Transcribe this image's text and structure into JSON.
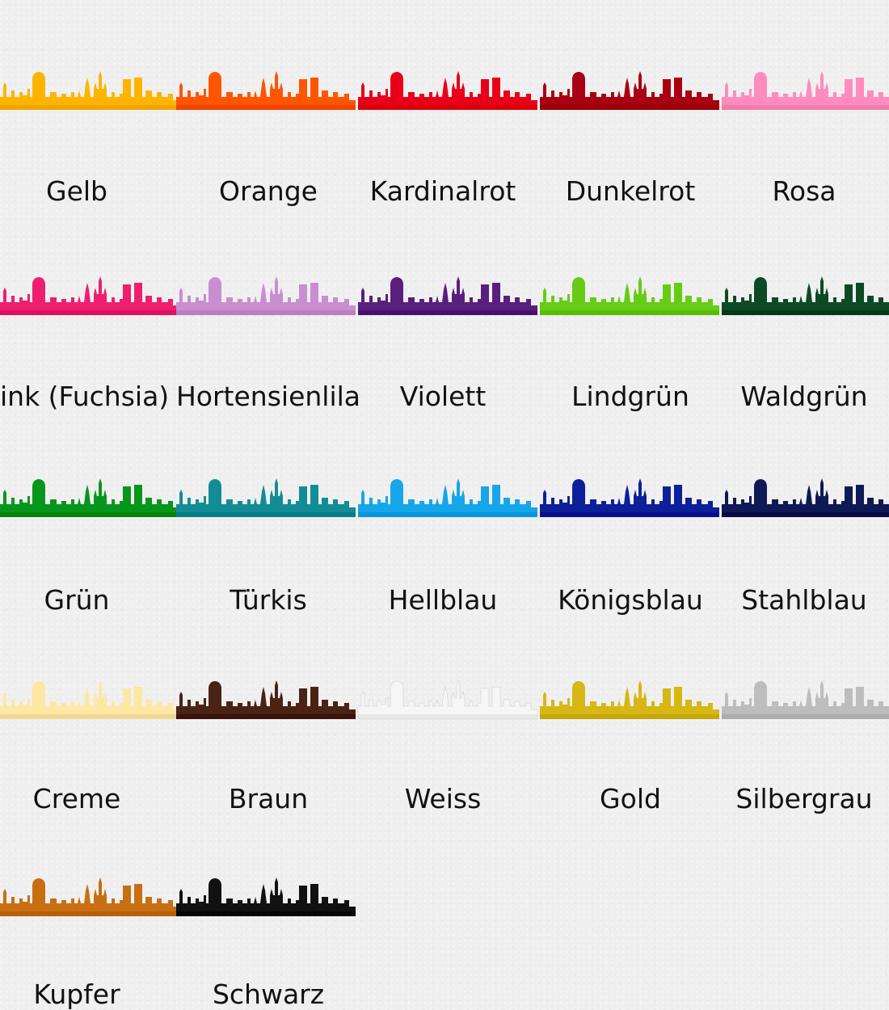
{
  "swatches": [
    {
      "name": "Gelb",
      "color": "#ffb400"
    },
    {
      "name": "Orange",
      "color": "#ff5500"
    },
    {
      "name": "Kardinalrot",
      "color": "#e8001a"
    },
    {
      "name": "Dunkelrot",
      "color": "#a80012"
    },
    {
      "name": "Rosa",
      "color": "#ff8cbd"
    },
    {
      "name": "Pink (Fuchsia)",
      "color": "#ef1f6f"
    },
    {
      "name": "Hortensienlila",
      "color": "#c98ed0"
    },
    {
      "name": "Violett",
      "color": "#5a1f7c"
    },
    {
      "name": "Lindgrün",
      "color": "#66cc14"
    },
    {
      "name": "Waldgrün",
      "color": "#0b4a25"
    },
    {
      "name": "Grün",
      "color": "#06961c"
    },
    {
      "name": "Türkis",
      "color": "#138d95"
    },
    {
      "name": "Hellblau",
      "color": "#16a6ea"
    },
    {
      "name": "Königsblau",
      "color": "#0d1f9a"
    },
    {
      "name": "Stahlblau",
      "color": "#0f1955"
    },
    {
      "name": "Creme",
      "color": "#ffe7a4"
    },
    {
      "name": "Braun",
      "color": "#4a2314"
    },
    {
      "name": "Weiss",
      "color": "#f6f6f6"
    },
    {
      "name": "Gold",
      "color": "#d6b714"
    },
    {
      "name": "Silbergrau",
      "color": "#bdbdbd"
    },
    {
      "name": "Kupfer",
      "color": "#c76f12"
    },
    {
      "name": "Schwarz",
      "color": "#111111"
    }
  ]
}
